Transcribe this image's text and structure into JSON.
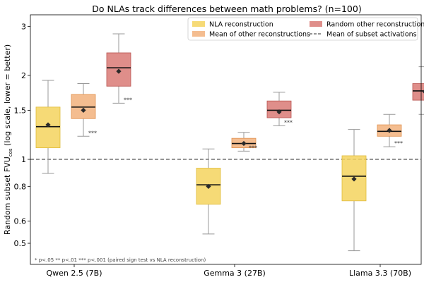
{
  "chart_data": {
    "type": "box",
    "title": "Do NLAs track differences between math problems?  (n=100)",
    "ylabel_main": "Random subset FVU",
    "ylabel_sub": "cos",
    "ylabel_rest": " (log scale, lower = better)",
    "yscale": "log",
    "ylim": [
      0.42,
      3.3
    ],
    "yticks": [
      0.5,
      0.6,
      0.8,
      1,
      1.5,
      2,
      3
    ],
    "ytick_labels": [
      "0.5",
      "0.6",
      "0.8",
      "1",
      "1.5",
      "2",
      "3"
    ],
    "categories": [
      "Qwen 2.5 (7B)",
      "Gemma 3 (27B)",
      "Llama 3.3 (70B)"
    ],
    "reference_line": 1.0,
    "series": [
      {
        "name": "NLA reconstruction",
        "color": "#f4d35e",
        "stroke": "#e0bb3a",
        "boxes": [
          {
            "whisker_low": 0.89,
            "q1": 1.1,
            "median": 1.31,
            "q3": 1.54,
            "whisker_high": 1.92,
            "mean": 1.33,
            "sig": ""
          },
          {
            "whisker_low": 0.54,
            "q1": 0.69,
            "median": 0.81,
            "q3": 0.93,
            "whisker_high": 1.09,
            "mean": 0.8,
            "sig": ""
          },
          {
            "whisker_low": 0.47,
            "q1": 0.71,
            "median": 0.87,
            "q3": 1.03,
            "whisker_high": 1.28,
            "mean": 0.85,
            "sig": ""
          }
        ]
      },
      {
        "name": "Mean of other reconstructions",
        "color": "#f2b27c",
        "stroke": "#e09150",
        "boxes": [
          {
            "whisker_low": 1.21,
            "q1": 1.4,
            "median": 1.54,
            "q3": 1.71,
            "whisker_high": 1.87,
            "mean": 1.5,
            "sig": "***"
          },
          {
            "whisker_low": 1.07,
            "q1": 1.1,
            "median": 1.14,
            "q3": 1.19,
            "whisker_high": 1.25,
            "mean": 1.14,
            "sig": "***"
          },
          {
            "whisker_low": 1.11,
            "q1": 1.21,
            "median": 1.26,
            "q3": 1.33,
            "whisker_high": 1.45,
            "mean": 1.27,
            "sig": "***"
          }
        ]
      },
      {
        "name": "Random other reconstruction",
        "color": "#d97a76",
        "stroke": "#b95450",
        "boxes": [
          {
            "whisker_low": 1.59,
            "q1": 1.83,
            "median": 2.13,
            "q3": 2.41,
            "whisker_high": 2.82,
            "mean": 2.07,
            "sig": "***"
          },
          {
            "whisker_low": 1.32,
            "q1": 1.41,
            "median": 1.5,
            "q3": 1.62,
            "whisker_high": 1.74,
            "mean": 1.48,
            "sig": "***"
          },
          {
            "whisker_low": 1.45,
            "q1": 1.63,
            "median": 1.76,
            "q3": 1.87,
            "whisker_high": 2.15,
            "mean": 1.75,
            "sig": "***"
          }
        ]
      }
    ],
    "legend": {
      "placement": "top-right",
      "entries": [
        {
          "label": "NLA reconstruction",
          "kind": "patch",
          "color": "#f4d35e"
        },
        {
          "label": "Random other reconstruction",
          "kind": "patch",
          "color": "#d97a76"
        },
        {
          "label": "Mean of other reconstructions",
          "kind": "patch",
          "color": "#f2b27c"
        },
        {
          "label": "Mean of subset activations",
          "kind": "dashed-line",
          "color": "#555555"
        }
      ]
    },
    "footnote": "* p<.05   ** p<.01   *** p<.001   (paired sign test vs NLA reconstruction)",
    "grid": false
  }
}
